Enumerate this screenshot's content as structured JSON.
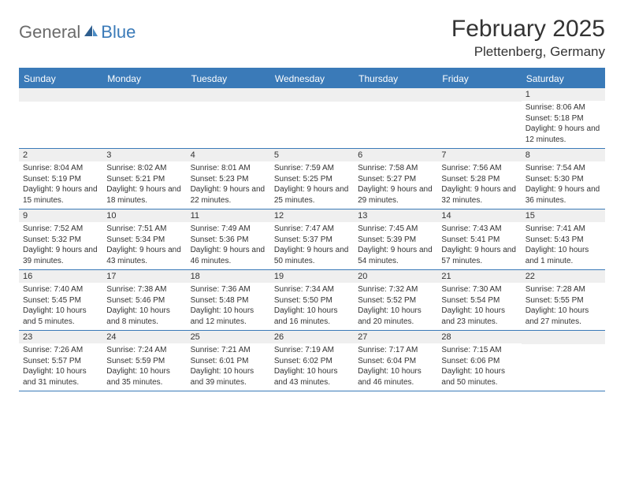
{
  "logo": {
    "text1": "General",
    "text2": "Blue"
  },
  "title": "February 2025",
  "location": "Plettenberg, Germany",
  "colors": {
    "brand_blue": "#3a7ab8",
    "header_gray": "#efefef",
    "text": "#333333",
    "logo_gray": "#6b6b6b"
  },
  "day_names": [
    "Sunday",
    "Monday",
    "Tuesday",
    "Wednesday",
    "Thursday",
    "Friday",
    "Saturday"
  ],
  "weeks": [
    [
      null,
      null,
      null,
      null,
      null,
      null,
      {
        "n": "1",
        "sunrise": "8:06 AM",
        "sunset": "5:18 PM",
        "daylight": "9 hours and 12 minutes."
      }
    ],
    [
      {
        "n": "2",
        "sunrise": "8:04 AM",
        "sunset": "5:19 PM",
        "daylight": "9 hours and 15 minutes."
      },
      {
        "n": "3",
        "sunrise": "8:02 AM",
        "sunset": "5:21 PM",
        "daylight": "9 hours and 18 minutes."
      },
      {
        "n": "4",
        "sunrise": "8:01 AM",
        "sunset": "5:23 PM",
        "daylight": "9 hours and 22 minutes."
      },
      {
        "n": "5",
        "sunrise": "7:59 AM",
        "sunset": "5:25 PM",
        "daylight": "9 hours and 25 minutes."
      },
      {
        "n": "6",
        "sunrise": "7:58 AM",
        "sunset": "5:27 PM",
        "daylight": "9 hours and 29 minutes."
      },
      {
        "n": "7",
        "sunrise": "7:56 AM",
        "sunset": "5:28 PM",
        "daylight": "9 hours and 32 minutes."
      },
      {
        "n": "8",
        "sunrise": "7:54 AM",
        "sunset": "5:30 PM",
        "daylight": "9 hours and 36 minutes."
      }
    ],
    [
      {
        "n": "9",
        "sunrise": "7:52 AM",
        "sunset": "5:32 PM",
        "daylight": "9 hours and 39 minutes."
      },
      {
        "n": "10",
        "sunrise": "7:51 AM",
        "sunset": "5:34 PM",
        "daylight": "9 hours and 43 minutes."
      },
      {
        "n": "11",
        "sunrise": "7:49 AM",
        "sunset": "5:36 PM",
        "daylight": "9 hours and 46 minutes."
      },
      {
        "n": "12",
        "sunrise": "7:47 AM",
        "sunset": "5:37 PM",
        "daylight": "9 hours and 50 minutes."
      },
      {
        "n": "13",
        "sunrise": "7:45 AM",
        "sunset": "5:39 PM",
        "daylight": "9 hours and 54 minutes."
      },
      {
        "n": "14",
        "sunrise": "7:43 AM",
        "sunset": "5:41 PM",
        "daylight": "9 hours and 57 minutes."
      },
      {
        "n": "15",
        "sunrise": "7:41 AM",
        "sunset": "5:43 PM",
        "daylight": "10 hours and 1 minute."
      }
    ],
    [
      {
        "n": "16",
        "sunrise": "7:40 AM",
        "sunset": "5:45 PM",
        "daylight": "10 hours and 5 minutes."
      },
      {
        "n": "17",
        "sunrise": "7:38 AM",
        "sunset": "5:46 PM",
        "daylight": "10 hours and 8 minutes."
      },
      {
        "n": "18",
        "sunrise": "7:36 AM",
        "sunset": "5:48 PM",
        "daylight": "10 hours and 12 minutes."
      },
      {
        "n": "19",
        "sunrise": "7:34 AM",
        "sunset": "5:50 PM",
        "daylight": "10 hours and 16 minutes."
      },
      {
        "n": "20",
        "sunrise": "7:32 AM",
        "sunset": "5:52 PM",
        "daylight": "10 hours and 20 minutes."
      },
      {
        "n": "21",
        "sunrise": "7:30 AM",
        "sunset": "5:54 PM",
        "daylight": "10 hours and 23 minutes."
      },
      {
        "n": "22",
        "sunrise": "7:28 AM",
        "sunset": "5:55 PM",
        "daylight": "10 hours and 27 minutes."
      }
    ],
    [
      {
        "n": "23",
        "sunrise": "7:26 AM",
        "sunset": "5:57 PM",
        "daylight": "10 hours and 31 minutes."
      },
      {
        "n": "24",
        "sunrise": "7:24 AM",
        "sunset": "5:59 PM",
        "daylight": "10 hours and 35 minutes."
      },
      {
        "n": "25",
        "sunrise": "7:21 AM",
        "sunset": "6:01 PM",
        "daylight": "10 hours and 39 minutes."
      },
      {
        "n": "26",
        "sunrise": "7:19 AM",
        "sunset": "6:02 PM",
        "daylight": "10 hours and 43 minutes."
      },
      {
        "n": "27",
        "sunrise": "7:17 AM",
        "sunset": "6:04 PM",
        "daylight": "10 hours and 46 minutes."
      },
      {
        "n": "28",
        "sunrise": "7:15 AM",
        "sunset": "6:06 PM",
        "daylight": "10 hours and 50 minutes."
      },
      null
    ]
  ],
  "labels": {
    "sunrise": "Sunrise: ",
    "sunset": "Sunset: ",
    "daylight": "Daylight: "
  }
}
